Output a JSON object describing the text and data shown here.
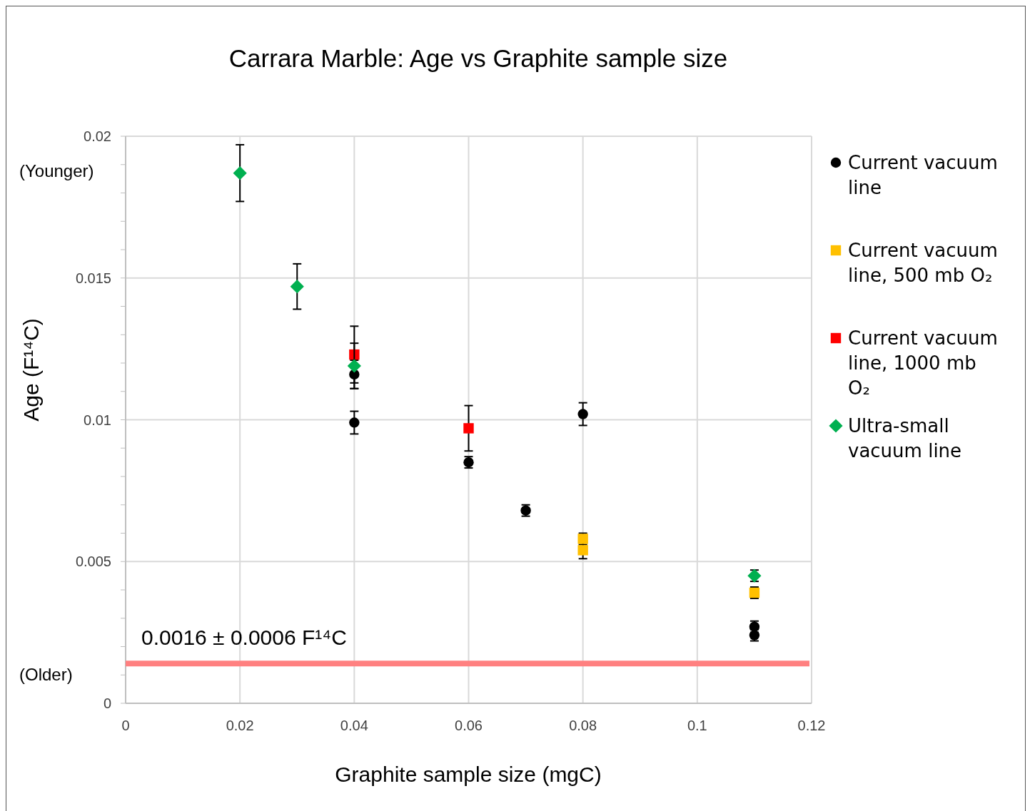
{
  "chart_data": {
    "type": "scatter",
    "title": "Carrara Marble: Age vs Graphite sample size",
    "xlabel": "Graphite sample size (mgC)",
    "ylabel": "Age (F¹⁴C)",
    "xlim": [
      0,
      0.12
    ],
    "xticks": [
      0,
      0.02,
      0.04,
      0.06,
      0.08,
      0.1,
      0.12
    ],
    "ylim": [
      0,
      0.02
    ],
    "yticks": [
      0,
      {
        "value": 0.001,
        "label": null
      },
      {
        "value": 0.002,
        "label": null
      },
      {
        "value": 0.003,
        "label": null
      },
      {
        "value": 0.004,
        "label": null
      },
      0.005,
      {
        "value": 0.006,
        "label": null
      },
      {
        "value": 0.007,
        "label": null
      },
      {
        "value": 0.008,
        "label": null
      },
      {
        "value": 0.009,
        "label": null
      },
      0.01,
      {
        "value": 0.011,
        "label": null
      },
      {
        "value": 0.012,
        "label": null
      },
      {
        "value": 0.013,
        "label": null
      },
      {
        "value": 0.014,
        "label": null
      },
      0.015,
      {
        "value": 0.016,
        "label": null
      },
      {
        "value": 0.017,
        "label": null
      },
      {
        "value": 0.018,
        "label": null
      },
      {
        "value": 0.019,
        "label": null
      },
      0.02
    ],
    "grid": true,
    "legend": "right",
    "series": [
      {
        "name": "Current vacuum line",
        "color": "#000000",
        "marker": "circle",
        "x": [
          0.04,
          0.04,
          0.06,
          0.07,
          0.08,
          0.11,
          0.11
        ],
        "values": [
          0.0116,
          0.0099,
          0.0085,
          0.0068,
          0.0102,
          0.0027,
          0.0024
        ],
        "errors": [
          0.0005,
          0.0004,
          0.0002,
          0.0002,
          0.0004,
          0.0002,
          0.0002
        ]
      },
      {
        "name": "Current vacuum line, 500 mb O₂",
        "color": "#ffc000",
        "marker": "square",
        "x": [
          0.08,
          0.08,
          0.11
        ],
        "values": [
          0.0058,
          0.0054,
          0.0039
        ],
        "errors": [
          0.0002,
          0.0003,
          0.0002
        ]
      },
      {
        "name": "Current vacuum line, 1000 mb O₂",
        "color": "#ff0000",
        "marker": "square",
        "x": [
          0.04,
          0.06
        ],
        "values": [
          0.0123,
          0.0097
        ],
        "errors": [
          0.001,
          0.0008
        ]
      },
      {
        "name": "Ultra-small vacuum line",
        "color": "#00b050",
        "marker": "diamond",
        "x": [
          0.02,
          0.03,
          0.04,
          0.11
        ],
        "values": [
          0.0187,
          0.0147,
          0.0119,
          0.0045
        ],
        "errors": [
          0.001,
          0.0008,
          0.0008,
          0.0002
        ]
      }
    ],
    "ref_lines": [
      {
        "axis": "y",
        "value": 0.0014,
        "label": "0.0016 ± 0.0006 F¹⁴C",
        "color": "#ff8080"
      }
    ],
    "annotations": [
      "(Younger)",
      "(Older)"
    ]
  }
}
